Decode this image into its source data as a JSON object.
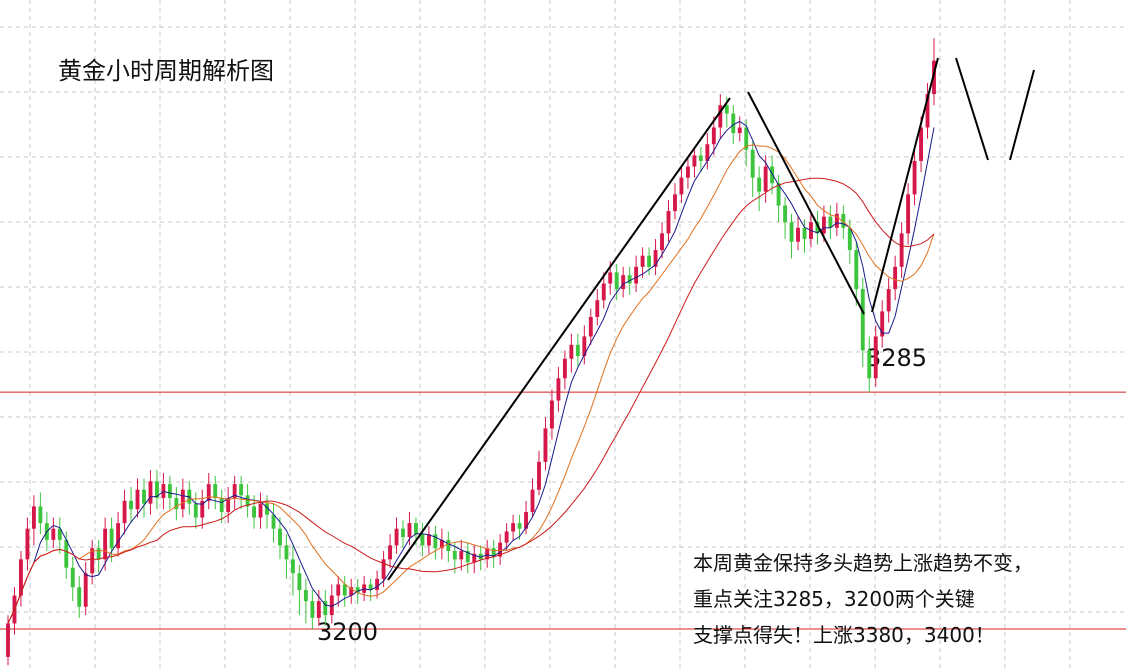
{
  "title": "黄金小时周期解析图",
  "annotation": {
    "lines": [
      "本周黄金保持多头趋势上涨趋势不变，",
      "重点关注3285，3200两个关键",
      "支撑点得失！上涨3380，3400！"
    ]
  },
  "colors": {
    "up": "#d6174a",
    "down": "#3cc43c",
    "ma_fast": "#1a1a8c",
    "ma_mid": "#e0701e",
    "ma_slow": "#cc1a1a",
    "level_line": "#d62020",
    "trend_line": "#000000",
    "grid": "#c8c8c8"
  },
  "chart_data": {
    "type": "candlestick",
    "title": "黄金小时周期解析图",
    "grid": true,
    "legend": "none",
    "ylim": [
      3186,
      3415
    ],
    "levels": [
      {
        "label": "3285",
        "value": 3285
      },
      {
        "label": "3200",
        "value": 3200
      }
    ],
    "series": [
      {
        "type": "candles",
        "values": [
          [
            3190,
            3202,
            3187,
            3205
          ],
          [
            3202,
            3212,
            3198,
            3215
          ],
          [
            3212,
            3225,
            3208,
            3228
          ],
          [
            3225,
            3236,
            3221,
            3240
          ],
          [
            3236,
            3244,
            3230,
            3248
          ],
          [
            3244,
            3238,
            3234,
            3249
          ],
          [
            3238,
            3232,
            3228,
            3242
          ],
          [
            3232,
            3236,
            3229,
            3240
          ],
          [
            3236,
            3232,
            3227,
            3240
          ],
          [
            3232,
            3222,
            3218,
            3235
          ],
          [
            3222,
            3215,
            3210,
            3226
          ],
          [
            3215,
            3208,
            3204,
            3219
          ],
          [
            3208,
            3220,
            3205,
            3224
          ],
          [
            3220,
            3229,
            3216,
            3232
          ],
          [
            3229,
            3225,
            3220,
            3232
          ],
          [
            3225,
            3236,
            3221,
            3240
          ],
          [
            3236,
            3229,
            3224,
            3240
          ],
          [
            3229,
            3238,
            3226,
            3242
          ],
          [
            3238,
            3246,
            3234,
            3250
          ],
          [
            3246,
            3243,
            3238,
            3251
          ],
          [
            3243,
            3250,
            3240,
            3254
          ],
          [
            3250,
            3245,
            3240,
            3254
          ],
          [
            3245,
            3253,
            3241,
            3257
          ],
          [
            3253,
            3247,
            3243,
            3257
          ],
          [
            3247,
            3252,
            3243,
            3256
          ],
          [
            3252,
            3247,
            3243,
            3255
          ],
          [
            3247,
            3243,
            3239,
            3251
          ],
          [
            3243,
            3250,
            3240,
            3254
          ],
          [
            3250,
            3245,
            3241,
            3253
          ],
          [
            3245,
            3240,
            3236,
            3249
          ],
          [
            3240,
            3246,
            3236,
            3250
          ],
          [
            3246,
            3252,
            3243,
            3256
          ],
          [
            3252,
            3247,
            3243,
            3255
          ],
          [
            3247,
            3242,
            3238,
            3250
          ],
          [
            3242,
            3247,
            3238,
            3251
          ],
          [
            3247,
            3252,
            3243,
            3255
          ],
          [
            3252,
            3248,
            3243,
            3255
          ],
          [
            3248,
            3244,
            3240,
            3252
          ],
          [
            3244,
            3240,
            3236,
            3248
          ],
          [
            3240,
            3245,
            3236,
            3249
          ],
          [
            3245,
            3241,
            3236,
            3248
          ],
          [
            3241,
            3236,
            3231,
            3245
          ],
          [
            3236,
            3230,
            3225,
            3240
          ],
          [
            3230,
            3225,
            3218,
            3234
          ],
          [
            3225,
            3220,
            3212,
            3230
          ],
          [
            3220,
            3214,
            3205,
            3223
          ],
          [
            3214,
            3210,
            3202,
            3218
          ],
          [
            3210,
            3204,
            3200,
            3214
          ],
          [
            3204,
            3210,
            3201,
            3214
          ],
          [
            3210,
            3205,
            3201,
            3214
          ],
          [
            3205,
            3212,
            3202,
            3216
          ],
          [
            3212,
            3216,
            3208,
            3219
          ],
          [
            3216,
            3212,
            3208,
            3219
          ],
          [
            3212,
            3215,
            3209,
            3218
          ],
          [
            3215,
            3213,
            3209,
            3218
          ],
          [
            3213,
            3216,
            3210,
            3219
          ],
          [
            3216,
            3214,
            3210,
            3218
          ],
          [
            3214,
            3218,
            3211,
            3221
          ],
          [
            3218,
            3225,
            3215,
            3228
          ],
          [
            3225,
            3230,
            3222,
            3234
          ],
          [
            3230,
            3236,
            3227,
            3240
          ],
          [
            3236,
            3233,
            3229,
            3239
          ],
          [
            3233,
            3238,
            3230,
            3242
          ],
          [
            3238,
            3234,
            3230,
            3240
          ],
          [
            3234,
            3230,
            3226,
            3238
          ],
          [
            3230,
            3234,
            3227,
            3237
          ],
          [
            3234,
            3229,
            3225,
            3237
          ],
          [
            3229,
            3232,
            3225,
            3236
          ],
          [
            3232,
            3228,
            3224,
            3235
          ],
          [
            3228,
            3225,
            3220,
            3231
          ],
          [
            3225,
            3228,
            3221,
            3232
          ],
          [
            3228,
            3224,
            3220,
            3231
          ],
          [
            3224,
            3227,
            3220,
            3230
          ],
          [
            3227,
            3225,
            3221,
            3230
          ],
          [
            3225,
            3229,
            3222,
            3232
          ],
          [
            3229,
            3226,
            3222,
            3232
          ],
          [
            3226,
            3231,
            3223,
            3234
          ],
          [
            3231,
            3235,
            3228,
            3238
          ],
          [
            3235,
            3238,
            3232,
            3241
          ],
          [
            3238,
            3236,
            3232,
            3241
          ],
          [
            3236,
            3242,
            3234,
            3246
          ],
          [
            3242,
            3250,
            3240,
            3254
          ],
          [
            3250,
            3260,
            3248,
            3264
          ],
          [
            3260,
            3272,
            3257,
            3276
          ],
          [
            3272,
            3282,
            3268,
            3286
          ],
          [
            3282,
            3290,
            3278,
            3294
          ],
          [
            3290,
            3297,
            3286,
            3300
          ],
          [
            3297,
            3302,
            3292,
            3306
          ],
          [
            3302,
            3298,
            3294,
            3306
          ],
          [
            3298,
            3305,
            3295,
            3309
          ],
          [
            3305,
            3312,
            3302,
            3315
          ],
          [
            3312,
            3318,
            3309,
            3322
          ],
          [
            3318,
            3324,
            3315,
            3328
          ],
          [
            3324,
            3328,
            3320,
            3332
          ],
          [
            3328,
            3322,
            3318,
            3331
          ],
          [
            3322,
            3327,
            3319,
            3330
          ],
          [
            3327,
            3324,
            3320,
            3330
          ],
          [
            3324,
            3330,
            3321,
            3334
          ],
          [
            3330,
            3334,
            3326,
            3337
          ],
          [
            3334,
            3330,
            3327,
            3337
          ],
          [
            3330,
            3336,
            3327,
            3340
          ],
          [
            3336,
            3342,
            3333,
            3346
          ],
          [
            3342,
            3350,
            3339,
            3354
          ],
          [
            3350,
            3356,
            3347,
            3360
          ],
          [
            3356,
            3362,
            3353,
            3366
          ],
          [
            3362,
            3366,
            3358,
            3369
          ],
          [
            3366,
            3370,
            3362,
            3373
          ],
          [
            3370,
            3368,
            3364,
            3373
          ],
          [
            3368,
            3374,
            3365,
            3378
          ],
          [
            3374,
            3380,
            3370,
            3384
          ],
          [
            3380,
            3388,
            3376,
            3392
          ],
          [
            3388,
            3385,
            3380,
            3391
          ],
          [
            3385,
            3378,
            3374,
            3388
          ],
          [
            3378,
            3380,
            3375,
            3384
          ],
          [
            3380,
            3372,
            3366,
            3383
          ],
          [
            3372,
            3362,
            3355,
            3375
          ],
          [
            3362,
            3357,
            3350,
            3366
          ],
          [
            3357,
            3366,
            3353,
            3370
          ],
          [
            3366,
            3360,
            3356,
            3370
          ],
          [
            3360,
            3352,
            3346,
            3363
          ],
          [
            3352,
            3346,
            3340,
            3355
          ],
          [
            3346,
            3339,
            3333,
            3349
          ],
          [
            3339,
            3344,
            3336,
            3348
          ],
          [
            3344,
            3340,
            3335,
            3347
          ],
          [
            3340,
            3346,
            3337,
            3350
          ],
          [
            3346,
            3342,
            3338,
            3350
          ],
          [
            3342,
            3348,
            3339,
            3352
          ],
          [
            3348,
            3344,
            3340,
            3352
          ],
          [
            3344,
            3349,
            3341,
            3353
          ],
          [
            3349,
            3344,
            3340,
            3352
          ],
          [
            3344,
            3336,
            3331,
            3347
          ],
          [
            3336,
            3322,
            3316,
            3339
          ],
          [
            3322,
            3300,
            3294,
            3326
          ],
          [
            3300,
            3290,
            3285,
            3305
          ],
          [
            3290,
            3305,
            3287,
            3309
          ],
          [
            3305,
            3314,
            3301,
            3318
          ],
          [
            3314,
            3322,
            3310,
            3326
          ],
          [
            3322,
            3330,
            3318,
            3334
          ],
          [
            3330,
            3342,
            3326,
            3346
          ],
          [
            3342,
            3356,
            3338,
            3360
          ],
          [
            3356,
            3368,
            3352,
            3372
          ],
          [
            3368,
            3380,
            3364,
            3384
          ],
          [
            3380,
            3392,
            3376,
            3396
          ],
          [
            3392,
            3404,
            3388,
            3412
          ]
        ]
      }
    ]
  }
}
